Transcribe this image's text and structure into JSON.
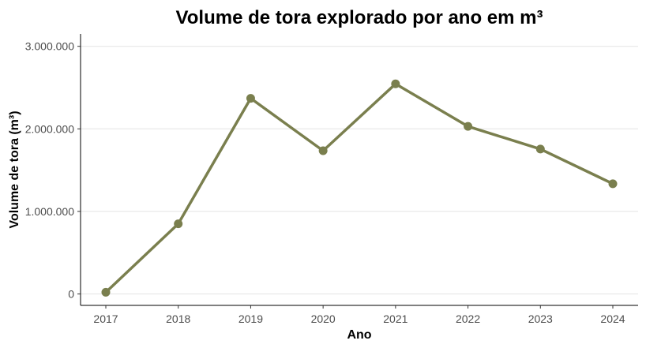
{
  "chart_data": {
    "type": "line",
    "title": "Volume de tora explorado por ano em m³",
    "xlabel": "Ano",
    "ylabel": "Volume de tora (m³)",
    "categories": [
      "2017",
      "2018",
      "2019",
      "2020",
      "2021",
      "2022",
      "2023",
      "2024"
    ],
    "series": [
      {
        "name": "Volume de tora",
        "values": [
          20000,
          850000,
          2370000,
          1735000,
          2545000,
          2030000,
          1755000,
          1335000
        ]
      }
    ],
    "ylim": [
      0,
      3150000
    ],
    "yticks": [
      0,
      1000000,
      2000000,
      3000000
    ],
    "ytick_labels": [
      "0",
      "1.000.000",
      "2.000.000",
      "3.000.000"
    ],
    "grid": true,
    "legend": "none",
    "line_color": "#7a7f4e"
  }
}
